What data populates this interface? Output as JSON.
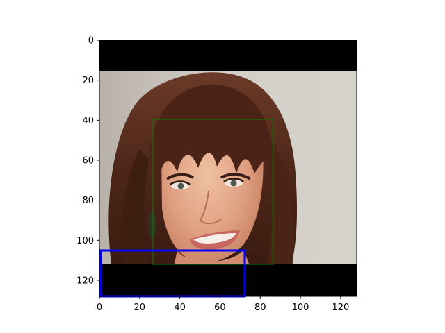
{
  "figure": {
    "image": {
      "description_name": "woman-face-photo",
      "extent": {
        "x": [
          0,
          128
        ],
        "y": [
          128,
          0
        ]
      }
    },
    "letterbox": {
      "top_band_y": [
        0,
        15.3
      ],
      "bottom_band_y": [
        111.8,
        128
      ],
      "color": "#000000"
    },
    "boxes": [
      {
        "name": "face-bounding-box",
        "color": "#008000",
        "x": [
          26.5,
          86.5
        ],
        "y": [
          39.2,
          111.8
        ]
      },
      {
        "name": "detection-box-blue",
        "color": "#0000ff",
        "x": [
          0.5,
          72.3
        ],
        "y": [
          104.9,
          127.6
        ]
      }
    ],
    "axes": {
      "xlim": [
        0,
        128
      ],
      "ylim": [
        128,
        0
      ],
      "x_ticks": [
        "0",
        "20",
        "40",
        "60",
        "80",
        "100",
        "120"
      ],
      "y_ticks": [
        "0",
        "20",
        "40",
        "60",
        "80",
        "100",
        "120"
      ]
    }
  }
}
